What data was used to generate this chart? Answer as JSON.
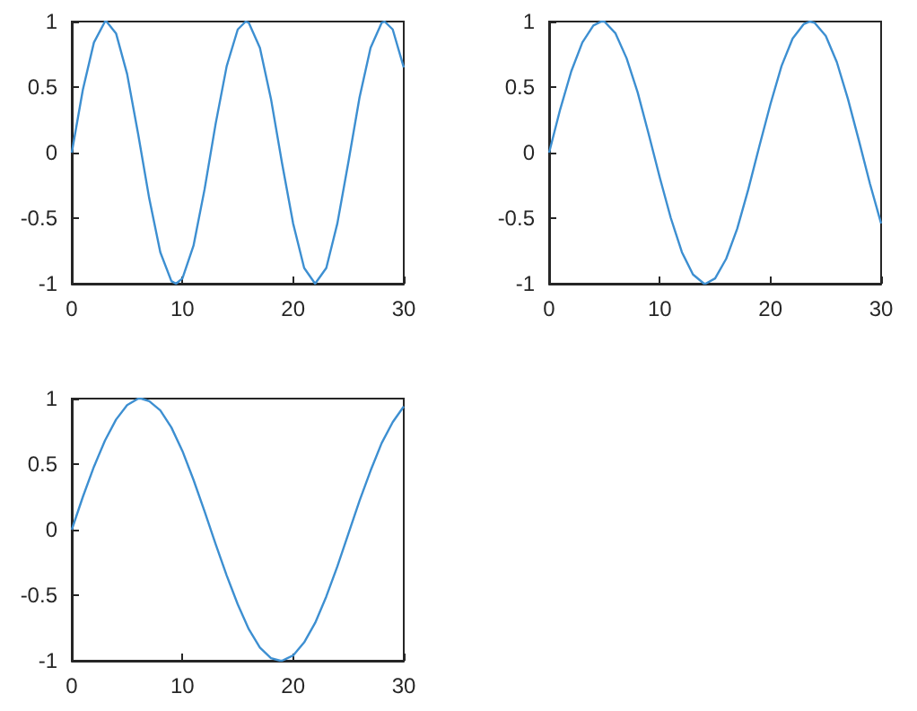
{
  "chart_data": [
    {
      "type": "line",
      "color": "#3d8fd1",
      "marker": "none",
      "line_style": "solid",
      "xlim": [
        0,
        30
      ],
      "ylim": [
        -1,
        1
      ],
      "xticks": [
        0,
        10,
        20,
        30
      ],
      "yticks": [
        -1,
        -0.5,
        0,
        0.5,
        1
      ],
      "x": [
        0,
        1,
        2,
        3,
        3.14,
        4,
        5,
        6,
        7,
        8,
        9,
        9.42,
        10,
        11,
        12,
        13,
        14,
        15,
        15.71,
        16,
        17,
        18,
        19,
        20,
        21,
        21.99,
        22,
        23,
        24,
        25,
        26,
        27,
        28,
        28.27,
        29,
        30
      ],
      "values": [
        0,
        0.48,
        0.84,
        1.0,
        1.0,
        0.91,
        0.6,
        0.14,
        -0.35,
        -0.76,
        -0.98,
        -1.0,
        -0.96,
        -0.71,
        -0.28,
        0.22,
        0.66,
        0.94,
        1.0,
        0.99,
        0.8,
        0.41,
        -0.08,
        -0.54,
        -0.88,
        -1.0,
        -1.0,
        -0.88,
        -0.54,
        -0.07,
        0.42,
        0.8,
        0.99,
        1.0,
        0.94,
        0.65
      ]
    },
    {
      "type": "line",
      "color": "#3d8fd1",
      "marker": "none",
      "line_style": "solid",
      "xlim": [
        0,
        30
      ],
      "ylim": [
        -1,
        1
      ],
      "xticks": [
        0,
        10,
        20,
        30
      ],
      "yticks": [
        -1,
        -0.5,
        0,
        0.5,
        1
      ],
      "x": [
        0,
        1,
        2,
        3,
        4,
        4.71,
        5,
        6,
        7,
        8,
        9,
        10,
        11,
        12,
        13,
        14,
        14.14,
        15,
        16,
        17,
        18,
        19,
        20,
        21,
        22,
        23,
        23.56,
        24,
        25,
        26,
        27,
        28,
        29,
        30
      ],
      "values": [
        0,
        0.33,
        0.62,
        0.84,
        0.97,
        1.0,
        1.0,
        0.91,
        0.72,
        0.46,
        0.14,
        -0.19,
        -0.5,
        -0.76,
        -0.93,
        -1.0,
        -1.0,
        -0.96,
        -0.81,
        -0.58,
        -0.28,
        0.05,
        0.37,
        0.66,
        0.87,
        0.98,
        1.0,
        0.99,
        0.89,
        0.69,
        0.41,
        0.09,
        -0.24,
        -0.54
      ]
    },
    {
      "type": "line",
      "color": "#3d8fd1",
      "marker": "none",
      "line_style": "solid",
      "xlim": [
        0,
        30
      ],
      "ylim": [
        -1,
        1
      ],
      "xticks": [
        0,
        10,
        20,
        30
      ],
      "yticks": [
        -1,
        -0.5,
        0,
        0.5,
        1
      ],
      "x": [
        0,
        1,
        2,
        3,
        4,
        5,
        6,
        6.28,
        7,
        8,
        9,
        10,
        11,
        12,
        13,
        14,
        15,
        16,
        17,
        18,
        18.85,
        19,
        20,
        21,
        22,
        23,
        24,
        25,
        26,
        27,
        28,
        29,
        30
      ],
      "values": [
        0,
        0.25,
        0.48,
        0.68,
        0.84,
        0.95,
        1.0,
        1.0,
        0.98,
        0.91,
        0.78,
        0.6,
        0.38,
        0.14,
        -0.11,
        -0.35,
        -0.57,
        -0.76,
        -0.9,
        -0.98,
        -1.0,
        -1.0,
        -0.96,
        -0.86,
        -0.71,
        -0.51,
        -0.28,
        -0.03,
        0.22,
        0.45,
        0.66,
        0.82,
        0.94
      ]
    }
  ]
}
